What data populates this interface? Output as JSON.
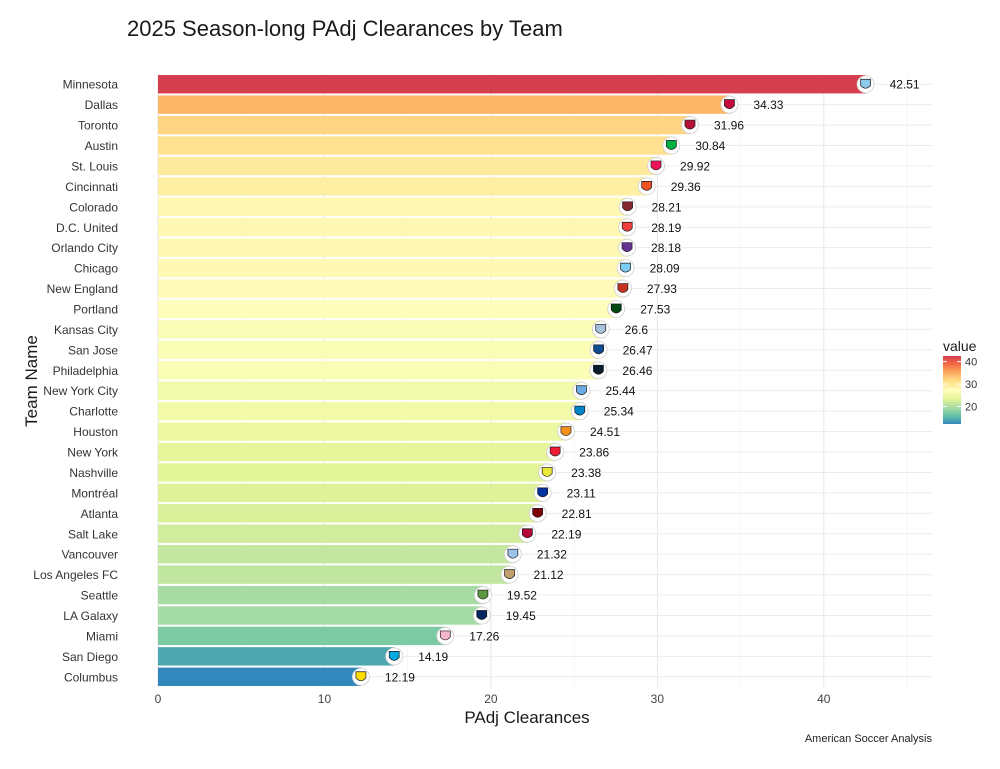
{
  "title": "2025 Season-long PAdj Clearances by Team",
  "caption": "American Soccer Analysis",
  "chart_data": {
    "type": "bar",
    "orientation": "horizontal",
    "title": "2025 Season-long PAdj Clearances by Team",
    "xlabel": "PAdj Clearances",
    "ylabel": "Team Name",
    "xlim": [
      0,
      46.5
    ],
    "x_ticks": [
      0,
      10,
      20,
      30,
      40
    ],
    "grid": true,
    "categories": [
      "Minnesota",
      "Dallas",
      "Toronto",
      "Austin",
      "St. Louis",
      "Cincinnati",
      "Colorado",
      "D.C. United",
      "Orlando City",
      "Chicago",
      "New England",
      "Portland",
      "Kansas City",
      "San Jose",
      "Philadelphia",
      "New York City",
      "Charlotte",
      "Houston",
      "New York",
      "Nashville",
      "Montréal",
      "Atlanta",
      "Salt Lake",
      "Vancouver",
      "Los Angeles FC",
      "Seattle",
      "LA Galaxy",
      "Miami",
      "San Diego",
      "Columbus"
    ],
    "values": [
      42.51,
      34.33,
      31.96,
      30.84,
      29.92,
      29.36,
      28.21,
      28.19,
      28.18,
      28.09,
      27.93,
      27.53,
      26.6,
      26.47,
      26.46,
      25.44,
      25.34,
      24.51,
      23.86,
      23.38,
      23.11,
      22.81,
      22.19,
      21.32,
      21.12,
      19.52,
      19.45,
      17.26,
      14.19,
      12.19
    ],
    "value_labels": [
      "42.51",
      "34.33",
      "31.96",
      "30.84",
      "29.92",
      "29.36",
      "28.21",
      "28.19",
      "28.18",
      "28.09",
      "27.93",
      "27.53",
      "26.6",
      "26.47",
      "26.46",
      "25.44",
      "25.34",
      "24.51",
      "23.86",
      "23.38",
      "23.11",
      "22.81",
      "22.19",
      "21.32",
      "21.12",
      "19.52",
      "19.45",
      "17.26",
      "14.19",
      "12.19"
    ],
    "logo_colors": [
      "#8cc8e8",
      "#c6093b",
      "#b81137",
      "#00b140",
      "#ec1458",
      "#f05323",
      "#862633",
      "#ef3e42",
      "#633492",
      "#7ccdef",
      "#c63323",
      "#004812",
      "#a3c3dd",
      "#0d4c92",
      "#071b2c",
      "#6cace4",
      "#0085ca",
      "#f4911e",
      "#ed1e36",
      "#ece83a",
      "#0033a1",
      "#80000a",
      "#b30838",
      "#9dc2ea",
      "#c39e6d",
      "#5d9741",
      "#00245d",
      "#f7b5cd",
      "#00a9e0",
      "#fedd00"
    ],
    "legend": {
      "title": "value",
      "position": "right",
      "ticks": [
        "40",
        "30",
        "20"
      ],
      "tick_values": [
        40,
        30,
        20
      ],
      "range": [
        12.19,
        42.51
      ],
      "colors": [
        "#d53e4f",
        "#f46d43",
        "#fdae61",
        "#fee08b",
        "#ffffbf",
        "#e6f598",
        "#abdda4",
        "#66c2a5",
        "#3288bd"
      ]
    }
  }
}
